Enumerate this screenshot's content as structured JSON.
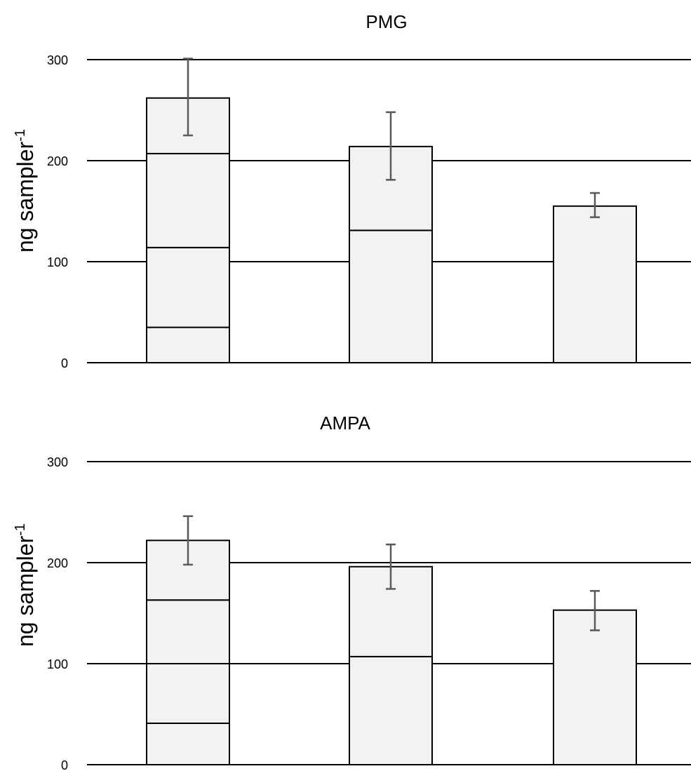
{
  "chart_data": [
    {
      "type": "bar",
      "stacked": true,
      "title": "PMG",
      "ylabel": "ng sampler",
      "ylabel_superscript": "-1",
      "ylim": [
        0,
        300
      ],
      "yticks": [
        "0",
        "100",
        "200",
        "300"
      ],
      "grid": true,
      "bars": [
        {
          "segment_tops": [
            35,
            114,
            207,
            262
          ],
          "total": 262,
          "error": [
            225,
            301
          ]
        },
        {
          "segment_tops": [
            131,
            214
          ],
          "total": 214,
          "error": [
            181,
            248
          ]
        },
        {
          "segment_tops": [
            155
          ],
          "total": 155,
          "error": [
            144,
            168
          ]
        }
      ]
    },
    {
      "type": "bar",
      "stacked": true,
      "title": "AMPA",
      "ylabel": "ng sampler",
      "ylabel_superscript": "-1",
      "ylim": [
        0,
        300
      ],
      "yticks": [
        "0",
        "100",
        "200",
        "300"
      ],
      "grid": true,
      "bars": [
        {
          "segment_tops": [
            41,
            100,
            163,
            222
          ],
          "total": 222,
          "error": [
            198,
            246
          ]
        },
        {
          "segment_tops": [
            107,
            196
          ],
          "total": 196,
          "error": [
            174,
            218
          ]
        },
        {
          "segment_tops": [
            153
          ],
          "total": 153,
          "error": [
            133,
            172
          ]
        }
      ]
    }
  ],
  "colors": {
    "bar_fill": "#f2f2f2",
    "bar_stroke": "#000000",
    "gridline": "#000000",
    "error_bar": "#595959"
  }
}
